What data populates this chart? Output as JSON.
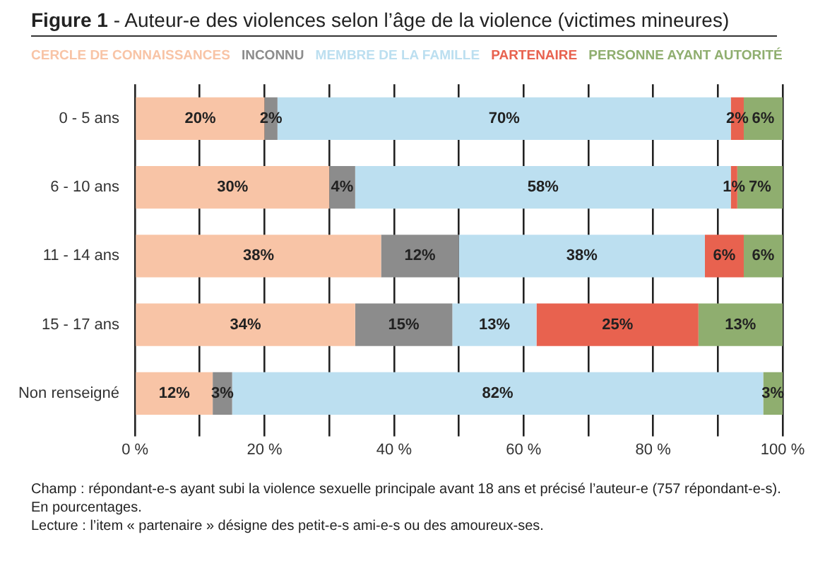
{
  "chart_data": {
    "type": "bar",
    "orientation": "horizontal",
    "stacked": true,
    "title": "Figure 1 - Auteur-e des violences selon l’âge de la violence (victimes mineures)",
    "categories": [
      "0 - 5 ans",
      "6 - 10 ans",
      "11 - 14 ans",
      "15 - 17 ans",
      "Non renseigné"
    ],
    "series": [
      {
        "name": "CERCLE DE CONNAISSANCES",
        "color": "#f8c4a6",
        "values": [
          20,
          30,
          38,
          34,
          12
        ],
        "value_labels": [
          "20%",
          "30%",
          "38%",
          "34%",
          "12%"
        ]
      },
      {
        "name": "INCONNU",
        "color": "#8c8c8c",
        "values": [
          2,
          4,
          12,
          15,
          3
        ],
        "value_labels": [
          "2%",
          "4%",
          "12%",
          "15%",
          "3%"
        ]
      },
      {
        "name": "MEMBRE DE LA FAMILLE",
        "color": "#bcdff0",
        "values": [
          70,
          58,
          38,
          13,
          82
        ],
        "value_labels": [
          "70%",
          "58%",
          "38%",
          "13%",
          "82%"
        ]
      },
      {
        "name": "PARTENAIRE",
        "color": "#e8624f",
        "values": [
          2,
          1,
          6,
          25,
          0
        ],
        "value_labels": [
          "2%",
          "1%",
          "6%",
          "25%",
          null
        ]
      },
      {
        "name": "PERSONNE AYANT AUTORITÉ",
        "color": "#8fae6f",
        "values": [
          6,
          7,
          6,
          13,
          3
        ],
        "value_labels": [
          "6%",
          "7%",
          "6%",
          "13%",
          "3%"
        ]
      }
    ],
    "xlim": [
      0,
      100
    ],
    "xticks": [
      {
        "value": 0,
        "label": "0 %"
      },
      {
        "value": 10,
        "label": null
      },
      {
        "value": 20,
        "label": "20 %"
      },
      {
        "value": 30,
        "label": null
      },
      {
        "value": 40,
        "label": "40 %"
      },
      {
        "value": 50,
        "label": null
      },
      {
        "value": 60,
        "label": "60 %"
      },
      {
        "value": 70,
        "label": null
      },
      {
        "value": 80,
        "label": "80 %"
      },
      {
        "value": 90,
        "label": null
      },
      {
        "value": 100,
        "label": "100 %"
      }
    ],
    "grid": "x",
    "legend": "top",
    "annotations": [
      "Champ : répondant-e-s ayant subi la violence sexuelle principale avant 18 ans et précisé l’auteur-e (757 répondant-e-s). En pourcentages.",
      "Lecture : l’item « partenaire » désigne des petit-e-s ami-e-s ou des amoureux-ses."
    ]
  }
}
